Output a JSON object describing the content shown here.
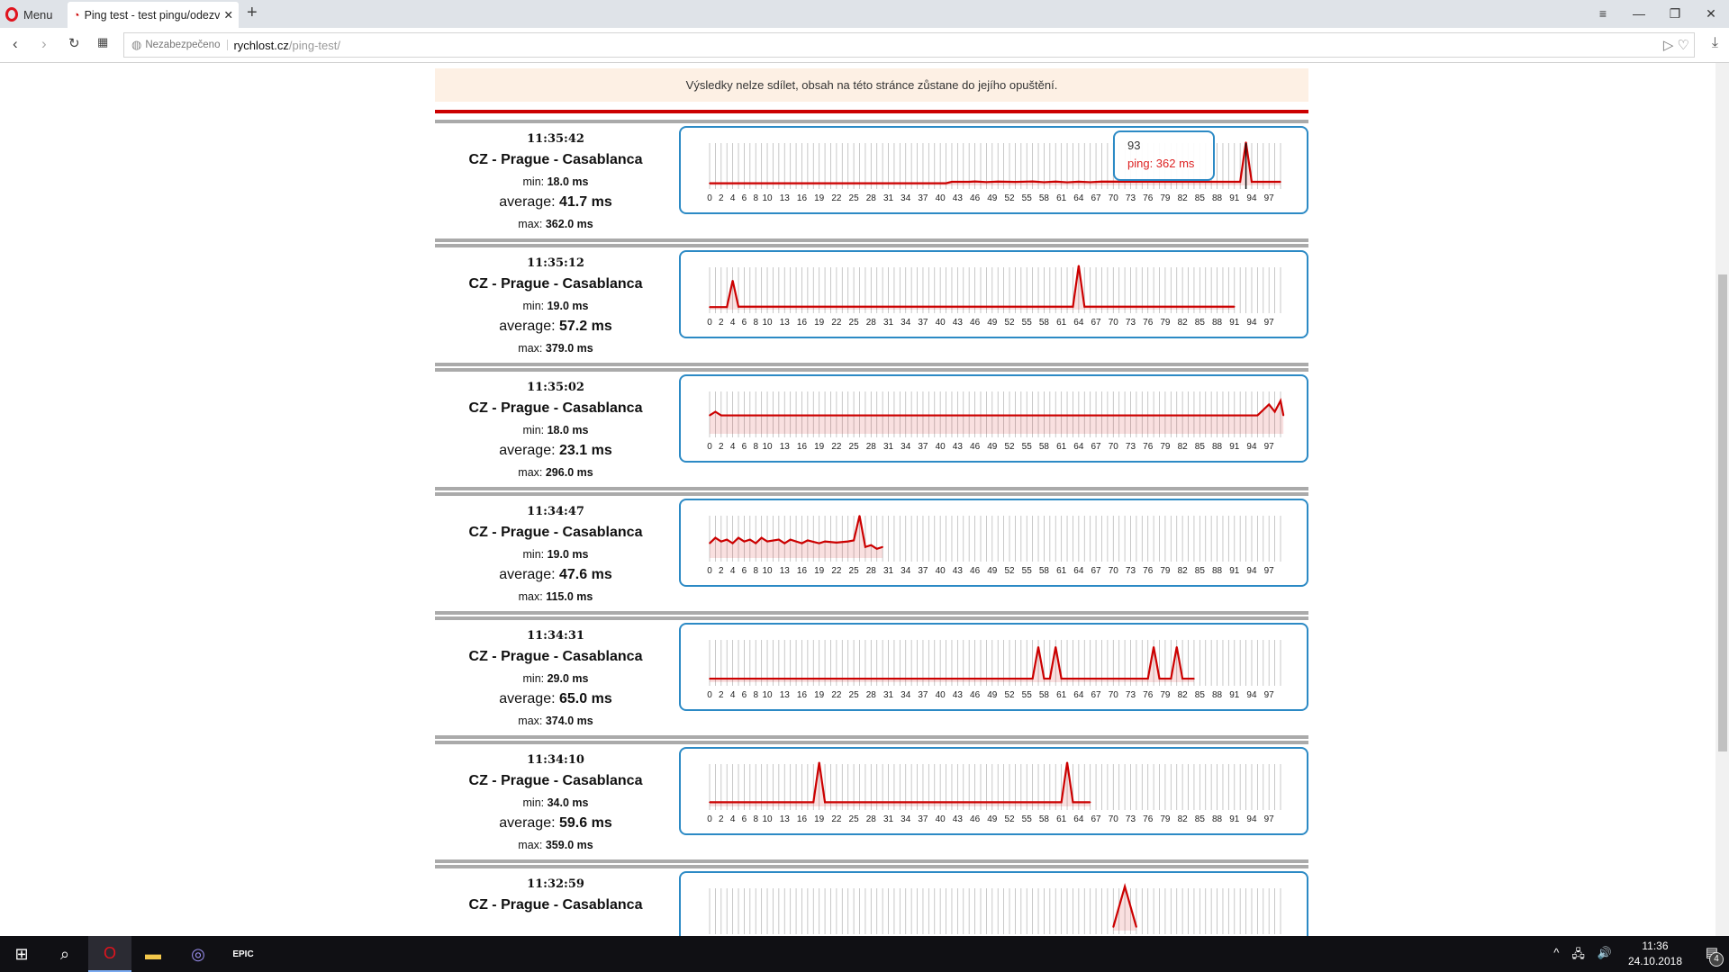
{
  "browser": {
    "menu_label": "Menu",
    "tab_title": "Ping test - test pingu/odezvy",
    "security_label": "Nezabezpečeno",
    "url_host": "rychlost.cz",
    "url_path": "/ping-test/"
  },
  "banner": "Výsledky nelze sdílet, obsah na této stránce zůstane do jejího opuštění.",
  "labels": {
    "min": "min: ",
    "average": "average: ",
    "max": "max: "
  },
  "tooltip": {
    "index": "93",
    "text": "ping: 362 ms"
  },
  "tick_labels": [
    "0",
    "2",
    "4",
    "6",
    "8",
    "10",
    "13",
    "16",
    "19",
    "22",
    "25",
    "28",
    "31",
    "34",
    "37",
    "40",
    "43",
    "46",
    "49",
    "52",
    "55",
    "58",
    "61",
    "64",
    "67",
    "70",
    "73",
    "76",
    "79",
    "82",
    "85",
    "88",
    "91",
    "94",
    "97"
  ],
  "colors": {
    "line": "#cc0000",
    "border": "#2c8ac5"
  },
  "taskbar": {
    "time": "11:36",
    "date": "24.10.2018",
    "notifications": "4",
    "epic_label": "EPIC"
  },
  "results": [
    {
      "time": "11:35:42",
      "title": "CZ - Prague - Casablanca",
      "min": "18.0 ms",
      "average": "41.7 ms",
      "max": "362.0 ms"
    },
    {
      "time": "11:35:12",
      "title": "CZ - Prague - Casablanca",
      "min": "19.0 ms",
      "average": "57.2 ms",
      "max": "379.0 ms"
    },
    {
      "time": "11:35:02",
      "title": "CZ - Prague - Casablanca",
      "min": "18.0 ms",
      "average": "23.1 ms",
      "max": "296.0 ms"
    },
    {
      "time": "11:34:47",
      "title": "CZ - Prague - Casablanca",
      "min": "19.0 ms",
      "average": "47.6 ms",
      "max": "115.0 ms"
    },
    {
      "time": "11:34:31",
      "title": "CZ - Prague - Casablanca",
      "min": "29.0 ms",
      "average": "65.0 ms",
      "max": "374.0 ms"
    },
    {
      "time": "11:34:10",
      "title": "CZ - Prague - Casablanca",
      "min": "34.0 ms",
      "average": "59.6 ms",
      "max": "359.0 ms"
    },
    {
      "time": "11:32:59",
      "title": "CZ - Prague - Casablanca",
      "min": "",
      "average": "",
      "max": ""
    }
  ],
  "chart_data": [
    {
      "type": "line",
      "x_range": [
        0,
        99
      ],
      "ylim": [
        0,
        370
      ],
      "points": [
        [
          0,
          18
        ],
        [
          41,
          18
        ],
        [
          42,
          30
        ],
        [
          45,
          30
        ],
        [
          46,
          33
        ],
        [
          48,
          28
        ],
        [
          50,
          32
        ],
        [
          53,
          29
        ],
        [
          56,
          33
        ],
        [
          58,
          27
        ],
        [
          60,
          32
        ],
        [
          62,
          26
        ],
        [
          64,
          31
        ],
        [
          66,
          27
        ],
        [
          68,
          32
        ],
        [
          92,
          30
        ],
        [
          93,
          362
        ],
        [
          94,
          30
        ],
        [
          99,
          30
        ]
      ]
    },
    {
      "type": "line",
      "x_range": [
        0,
        99
      ],
      "ylim": [
        0,
        380
      ],
      "points": [
        [
          0,
          22
        ],
        [
          3,
          22
        ],
        [
          4,
          250
        ],
        [
          5,
          25
        ],
        [
          63,
          25
        ],
        [
          64,
          379
        ],
        [
          65,
          25
        ],
        [
          91,
          25
        ]
      ]
    },
    {
      "type": "line",
      "x_range": [
        0,
        99
      ],
      "ylim": [
        0,
        60
      ],
      "points": [
        [
          0,
          25
        ],
        [
          1,
          30
        ],
        [
          2,
          25
        ],
        [
          95,
          25
        ],
        [
          97,
          40
        ],
        [
          98,
          30
        ],
        [
          99,
          45
        ],
        [
          99.5,
          25
        ]
      ]
    },
    {
      "type": "line",
      "x_range": [
        0,
        99
      ],
      "ylim": [
        0,
        120
      ],
      "points": [
        [
          0,
          40
        ],
        [
          1,
          55
        ],
        [
          2,
          45
        ],
        [
          3,
          50
        ],
        [
          4,
          40
        ],
        [
          5,
          55
        ],
        [
          6,
          45
        ],
        [
          7,
          50
        ],
        [
          8,
          40
        ],
        [
          9,
          55
        ],
        [
          10,
          45
        ],
        [
          12,
          50
        ],
        [
          13,
          40
        ],
        [
          14,
          50
        ],
        [
          16,
          40
        ],
        [
          17,
          48
        ],
        [
          19,
          40
        ],
        [
          20,
          45
        ],
        [
          22,
          42
        ],
        [
          24,
          45
        ],
        [
          25,
          48
        ],
        [
          26,
          115
        ],
        [
          27,
          30
        ],
        [
          28,
          35
        ],
        [
          29,
          25
        ],
        [
          30,
          30
        ]
      ]
    },
    {
      "type": "line",
      "x_range": [
        0,
        99
      ],
      "ylim": [
        0,
        375
      ],
      "points": [
        [
          0,
          30
        ],
        [
          56,
          30
        ],
        [
          57,
          300
        ],
        [
          58,
          30
        ],
        [
          59,
          30
        ],
        [
          60,
          300
        ],
        [
          61,
          30
        ],
        [
          76,
          30
        ],
        [
          77,
          300
        ],
        [
          78,
          30
        ],
        [
          80,
          30
        ],
        [
          81,
          300
        ],
        [
          82,
          30
        ],
        [
          84,
          30
        ]
      ]
    },
    {
      "type": "line",
      "x_range": [
        0,
        99
      ],
      "ylim": [
        0,
        360
      ],
      "points": [
        [
          0,
          34
        ],
        [
          18,
          34
        ],
        [
          19,
          359
        ],
        [
          20,
          34
        ],
        [
          61,
          34
        ],
        [
          62,
          359
        ],
        [
          63,
          34
        ],
        [
          66,
          34
        ]
      ]
    },
    {
      "type": "line",
      "x_range": [
        0,
        99
      ],
      "ylim": [
        0,
        370
      ],
      "points": [
        [
          70,
          30
        ],
        [
          72,
          370
        ],
        [
          74,
          30
        ]
      ]
    }
  ]
}
